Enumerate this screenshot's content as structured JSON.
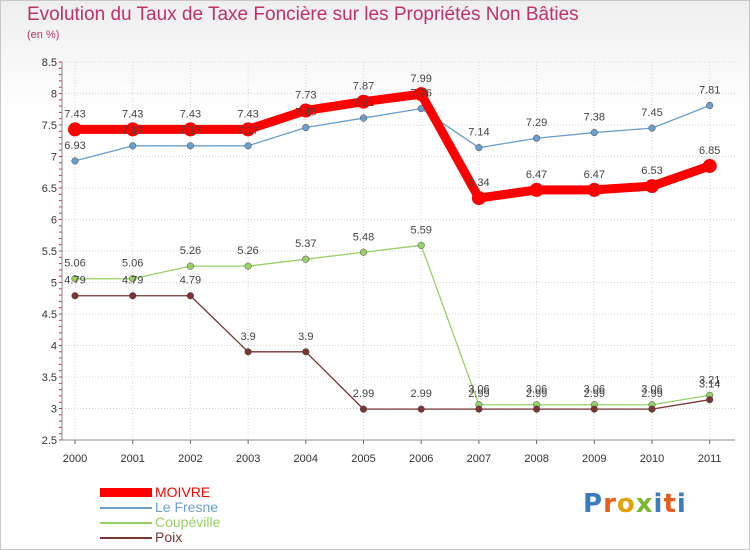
{
  "title": "Evolution du Taux de Taxe Foncière sur les Propriétés Non Bâties",
  "unit_label": "(en %)",
  "logo_text": "Proxiti",
  "logo_colors": [
    "#3b7bbf",
    "#e85d1e",
    "#e3a20b",
    "#7cb82f",
    "#3b7bbf",
    "#e85d1e",
    "#3b7bbf"
  ],
  "chart_data": {
    "type": "line",
    "title": "Evolution du Taux de Taxe Foncière sur les Propriétés Non Bâties",
    "ylabel": "(en %)",
    "xlabel": "",
    "x": [
      "2000",
      "2001",
      "2002",
      "2003",
      "2004",
      "2005",
      "2006",
      "2007",
      "2008",
      "2009",
      "2010",
      "2011"
    ],
    "ylim": [
      2.5,
      8.5
    ],
    "yticks": [
      "2.5",
      "3",
      "3.5",
      "4",
      "4.5",
      "5",
      "5.5",
      "6",
      "6.5",
      "7",
      "7.5",
      "8",
      "8.5"
    ],
    "grid": true,
    "legend_position": "bottom-left",
    "series": [
      {
        "name": "MOIVRE",
        "color": "#ff0000",
        "emphasis": true,
        "values": [
          7.43,
          7.43,
          7.43,
          7.43,
          7.73,
          7.87,
          7.99,
          6.34,
          6.47,
          6.47,
          6.53,
          6.85
        ],
        "labels": [
          "7.43",
          "7.43",
          "7.43",
          "7.43",
          "7.73",
          "7.87",
          "7.99",
          "6.34",
          "6.47",
          "6.47",
          "6.53",
          "6.85"
        ]
      },
      {
        "name": "Le Fresne",
        "color": "#6b9ecb",
        "emphasis": false,
        "values": [
          6.93,
          7.17,
          7.17,
          7.17,
          7.46,
          7.61,
          7.76,
          7.14,
          7.29,
          7.38,
          7.45,
          7.81
        ],
        "labels": [
          "6.93",
          "7.17",
          "7.17",
          "7.17",
          "7.46",
          "7.61",
          "7.76",
          "7.14",
          "7.29",
          "7.38",
          "7.45",
          "7.81"
        ]
      },
      {
        "name": "Coupéville",
        "color": "#99d066",
        "emphasis": false,
        "values": [
          5.06,
          5.06,
          5.26,
          5.26,
          5.37,
          5.48,
          5.59,
          3.06,
          3.06,
          3.06,
          3.06,
          3.21
        ],
        "labels": [
          "5.06",
          "5.06",
          "5.26",
          "5.26",
          "5.37",
          "5.48",
          "5.59",
          "3.06",
          "3.06",
          "3.06",
          "3.06",
          "3.21"
        ]
      },
      {
        "name": "Poix",
        "color": "#7a3535",
        "emphasis": false,
        "values": [
          4.79,
          4.79,
          4.79,
          3.9,
          3.9,
          2.99,
          2.99,
          2.99,
          2.99,
          2.99,
          2.99,
          3.14
        ],
        "labels": [
          "4.79",
          "4.79",
          "4.79",
          "3.9",
          "3.9",
          "2.99",
          "2.99",
          "2.99",
          "2.99",
          "2.99",
          "2.99",
          "3.14"
        ]
      }
    ]
  }
}
